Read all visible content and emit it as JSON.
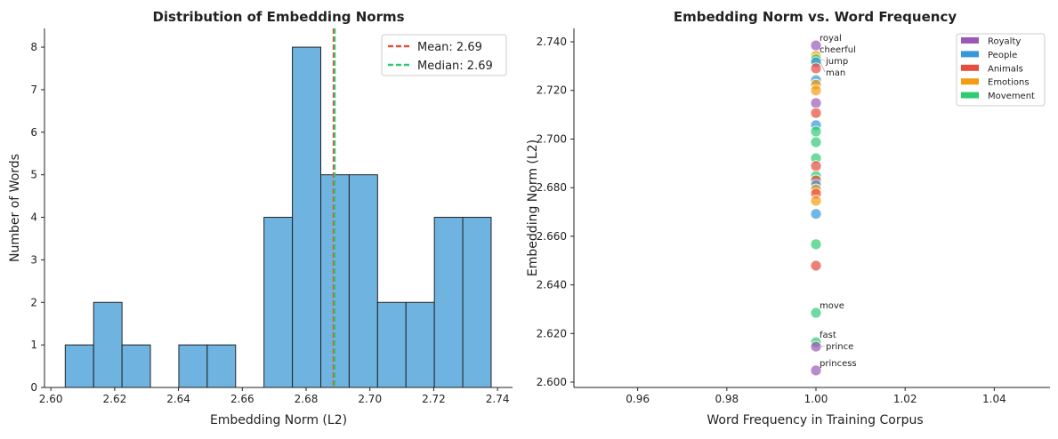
{
  "chart_data": [
    {
      "type": "bar",
      "title": "Distribution of Embedding Norms",
      "xlabel": "Embedding Norm (L2)",
      "ylabel": "Number of Words",
      "bin_edges": [
        2.6045,
        2.6134,
        2.6223,
        2.6312,
        2.6401,
        2.649,
        2.6579,
        2.6668,
        2.6757,
        2.6846,
        2.6935,
        2.7024,
        2.7113,
        2.7202,
        2.7291,
        2.738
      ],
      "values": [
        1,
        2,
        1,
        0,
        1,
        1,
        0,
        4,
        8,
        5,
        5,
        2,
        2,
        4,
        4
      ],
      "xlim": [
        2.598,
        2.7447
      ],
      "ylim": [
        0,
        8.44
      ],
      "xticks": [
        "2.60",
        "2.62",
        "2.64",
        "2.66",
        "2.68",
        "2.70",
        "2.72",
        "2.74"
      ],
      "yticks": [
        "0",
        "1",
        "2",
        "3",
        "4",
        "5",
        "6",
        "7",
        "8"
      ],
      "bar_color": "#6fb3e0",
      "lines": [
        {
          "name": "Mean: 2.69",
          "x": 2.6886,
          "color": "#e74c3c"
        },
        {
          "name": "Median: 2.69",
          "x": 2.689,
          "color": "#2ecc71"
        }
      ],
      "legend": "top-right"
    },
    {
      "type": "scatter",
      "title": "Embedding Norm vs. Word Frequency",
      "xlabel": "Word Frequency in Training Corpus",
      "ylabel": "Embedding Norm (L2)",
      "xlim": [
        0.9457,
        1.0525
      ],
      "ylim": [
        2.5978,
        2.7455
      ],
      "xticks": [
        "0.96",
        "0.98",
        "1.00",
        "1.02",
        "1.04"
      ],
      "yticks": [
        "2.600",
        "2.620",
        "2.640",
        "2.660",
        "2.680",
        "2.700",
        "2.720",
        "2.740"
      ],
      "categories": [
        {
          "name": "Royalty",
          "color": "#9b59b6"
        },
        {
          "name": "People",
          "color": "#3498db"
        },
        {
          "name": "Animals",
          "color": "#e74c3c"
        },
        {
          "name": "Emotions",
          "color": "#f39c12"
        },
        {
          "name": "Movement",
          "color": "#2ecc71"
        }
      ],
      "points": [
        {
          "x": 1,
          "y": 2.7385,
          "c": "Royalty",
          "label": "royal"
        },
        {
          "x": 1,
          "y": 2.7342,
          "c": "Emotions",
          "label": "cheerful"
        },
        {
          "x": 1,
          "y": 2.7328,
          "c": "Movement",
          "label": "jump"
        },
        {
          "x": 1,
          "y": 2.7316,
          "c": "People",
          "label": "man"
        },
        {
          "x": 1,
          "y": 2.7291,
          "c": "Animals"
        },
        {
          "x": 1,
          "y": 2.7242,
          "c": "People"
        },
        {
          "x": 1,
          "y": 2.7224,
          "c": "Emotions"
        },
        {
          "x": 1,
          "y": 2.72,
          "c": "Emotions"
        },
        {
          "x": 1,
          "y": 2.7148,
          "c": "Royalty"
        },
        {
          "x": 1,
          "y": 2.7107,
          "c": "Animals"
        },
        {
          "x": 1,
          "y": 2.7057,
          "c": "People"
        },
        {
          "x": 1,
          "y": 2.7031,
          "c": "Movement"
        },
        {
          "x": 1,
          "y": 2.6987,
          "c": "Movement"
        },
        {
          "x": 1,
          "y": 2.6921,
          "c": "Movement"
        },
        {
          "x": 1,
          "y": 2.6889,
          "c": "Animals"
        },
        {
          "x": 1,
          "y": 2.6848,
          "c": "Movement"
        },
        {
          "x": 1,
          "y": 2.683,
          "c": "Animals"
        },
        {
          "x": 1,
          "y": 2.6811,
          "c": "People"
        },
        {
          "x": 1,
          "y": 2.6793,
          "c": "Emotions"
        },
        {
          "x": 1,
          "y": 2.6775,
          "c": "Animals"
        },
        {
          "x": 1,
          "y": 2.6746,
          "c": "Emotions"
        },
        {
          "x": 1,
          "y": 2.6692,
          "c": "People"
        },
        {
          "x": 1,
          "y": 2.6567,
          "c": "Movement"
        },
        {
          "x": 1,
          "y": 2.6479,
          "c": "Animals"
        },
        {
          "x": 1,
          "y": 2.6285,
          "c": "Movement",
          "label": "move"
        },
        {
          "x": 1,
          "y": 2.6164,
          "c": "Movement",
          "label": "fast"
        },
        {
          "x": 1,
          "y": 2.6146,
          "c": "Royalty",
          "label": "prince"
        },
        {
          "x": 1,
          "y": 2.6048,
          "c": "Royalty",
          "label": "princess"
        }
      ],
      "legend": "top-right"
    }
  ]
}
